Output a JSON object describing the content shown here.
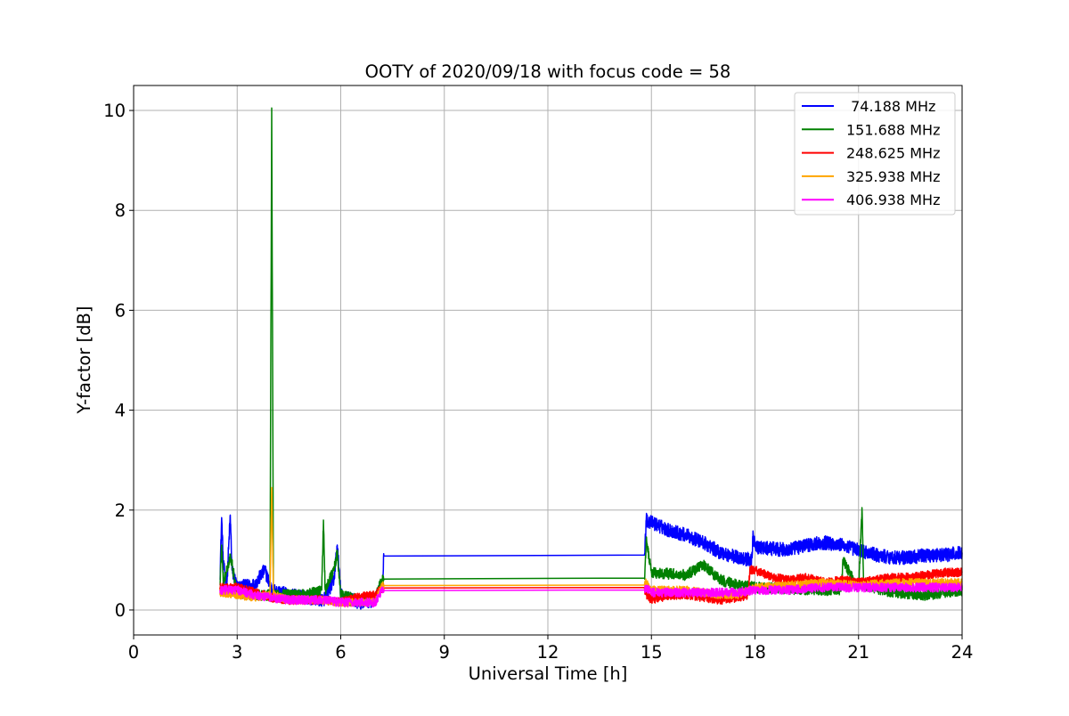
{
  "chart_data": {
    "type": "line",
    "title": "OOTY of 2020/09/18 with focus code = 58",
    "xlabel": "Universal Time [h]",
    "ylabel": "Y-factor [dB]",
    "xlim": [
      0,
      24
    ],
    "ylim": [
      -0.5,
      10.5
    ],
    "xticks": [
      0,
      3,
      6,
      9,
      12,
      15,
      18,
      21,
      24
    ],
    "yticks": [
      0,
      2,
      4,
      6,
      8,
      10
    ],
    "grid": true,
    "legend_position": "top-right",
    "series": [
      {
        "name": " 74.188 MHz",
        "color": "#0000ff",
        "noise": 0.14,
        "points": [
          [
            2.5,
            0.6
          ],
          [
            2.55,
            1.85
          ],
          [
            2.6,
            0.9
          ],
          [
            2.7,
            0.5
          ],
          [
            2.8,
            1.9
          ],
          [
            2.85,
            0.8
          ],
          [
            3.0,
            0.45
          ],
          [
            3.5,
            0.5
          ],
          [
            3.8,
            0.8
          ],
          [
            4.0,
            0.4
          ],
          [
            4.5,
            0.3
          ],
          [
            5.0,
            0.25
          ],
          [
            5.5,
            0.2
          ],
          [
            5.8,
            0.6
          ],
          [
            5.9,
            1.3
          ],
          [
            6.0,
            0.3
          ],
          [
            6.5,
            0.15
          ],
          [
            7.0,
            0.2
          ],
          [
            7.2,
            0.5
          ],
          [
            7.25,
            1.08
          ],
          [
            14.8,
            1.1
          ],
          [
            14.85,
            1.8
          ],
          [
            15.0,
            1.75
          ],
          [
            15.5,
            1.6
          ],
          [
            16.0,
            1.5
          ],
          [
            16.5,
            1.35
          ],
          [
            17.0,
            1.15
          ],
          [
            17.5,
            1.05
          ],
          [
            17.9,
            1.0
          ],
          [
            17.95,
            1.5
          ],
          [
            18.0,
            1.25
          ],
          [
            19.0,
            1.2
          ],
          [
            19.5,
            1.3
          ],
          [
            20.0,
            1.35
          ],
          [
            20.5,
            1.3
          ],
          [
            21.0,
            1.2
          ],
          [
            21.5,
            1.1
          ],
          [
            22.0,
            1.05
          ],
          [
            22.5,
            1.05
          ],
          [
            23.0,
            1.1
          ],
          [
            23.5,
            1.1
          ],
          [
            24.0,
            1.15
          ]
        ]
      },
      {
        "name": "151.688 MHz",
        "color": "#008000",
        "noise": 0.11,
        "points": [
          [
            2.5,
            0.5
          ],
          [
            2.55,
            1.3
          ],
          [
            2.6,
            0.5
          ],
          [
            2.8,
            1.1
          ],
          [
            3.0,
            0.35
          ],
          [
            3.5,
            0.3
          ],
          [
            3.95,
            0.3
          ],
          [
            4.0,
            10.05
          ],
          [
            4.05,
            0.3
          ],
          [
            4.5,
            0.3
          ],
          [
            5.0,
            0.3
          ],
          [
            5.45,
            0.4
          ],
          [
            5.5,
            1.8
          ],
          [
            5.55,
            0.4
          ],
          [
            5.8,
            0.8
          ],
          [
            5.9,
            1.15
          ],
          [
            6.0,
            0.3
          ],
          [
            6.5,
            0.2
          ],
          [
            7.0,
            0.25
          ],
          [
            7.2,
            0.6
          ],
          [
            7.25,
            0.62
          ],
          [
            14.8,
            0.64
          ],
          [
            14.85,
            1.4
          ],
          [
            15.0,
            0.75
          ],
          [
            16.0,
            0.7
          ],
          [
            16.5,
            0.9
          ],
          [
            17.0,
            0.6
          ],
          [
            17.5,
            0.5
          ],
          [
            18.0,
            0.45
          ],
          [
            20.0,
            0.4
          ],
          [
            20.5,
            0.4
          ],
          [
            20.55,
            1.0
          ],
          [
            21.0,
            0.4
          ],
          [
            21.1,
            2.05
          ],
          [
            21.15,
            0.5
          ],
          [
            22.0,
            0.35
          ],
          [
            23.0,
            0.3
          ],
          [
            24.0,
            0.4
          ]
        ]
      },
      {
        "name": "248.625 MHz",
        "color": "#ff0000",
        "noise": 0.09,
        "points": [
          [
            2.5,
            0.45
          ],
          [
            3.0,
            0.45
          ],
          [
            3.5,
            0.35
          ],
          [
            4.0,
            0.25
          ],
          [
            4.5,
            0.2
          ],
          [
            5.0,
            0.2
          ],
          [
            5.5,
            0.2
          ],
          [
            6.0,
            0.15
          ],
          [
            6.5,
            0.25
          ],
          [
            7.0,
            0.3
          ],
          [
            7.2,
            0.45
          ],
          [
            7.25,
            0.44
          ],
          [
            14.8,
            0.45
          ],
          [
            14.85,
            0.3
          ],
          [
            15.0,
            0.2
          ],
          [
            15.5,
            0.3
          ],
          [
            16.0,
            0.3
          ],
          [
            16.5,
            0.25
          ],
          [
            17.0,
            0.2
          ],
          [
            17.5,
            0.25
          ],
          [
            17.8,
            0.3
          ],
          [
            17.85,
            0.8
          ],
          [
            18.0,
            0.8
          ],
          [
            18.5,
            0.65
          ],
          [
            19.0,
            0.6
          ],
          [
            19.5,
            0.65
          ],
          [
            20.0,
            0.55
          ],
          [
            20.5,
            0.6
          ],
          [
            21.0,
            0.55
          ],
          [
            21.5,
            0.6
          ],
          [
            22.0,
            0.65
          ],
          [
            22.5,
            0.65
          ],
          [
            23.0,
            0.7
          ],
          [
            23.5,
            0.75
          ],
          [
            24.0,
            0.75
          ]
        ]
      },
      {
        "name": "325.938 MHz",
        "color": "#ffa500",
        "noise": 0.08,
        "points": [
          [
            2.5,
            0.35
          ],
          [
            3.0,
            0.3
          ],
          [
            3.5,
            0.25
          ],
          [
            3.95,
            0.3
          ],
          [
            4.0,
            2.45
          ],
          [
            4.05,
            0.3
          ],
          [
            4.5,
            0.2
          ],
          [
            5.0,
            0.2
          ],
          [
            5.5,
            0.2
          ],
          [
            6.0,
            0.15
          ],
          [
            6.5,
            0.15
          ],
          [
            7.0,
            0.15
          ],
          [
            7.2,
            0.5
          ],
          [
            7.25,
            0.49
          ],
          [
            14.8,
            0.5
          ],
          [
            14.85,
            0.55
          ],
          [
            15.0,
            0.4
          ],
          [
            16.0,
            0.4
          ],
          [
            17.0,
            0.3
          ],
          [
            17.5,
            0.3
          ],
          [
            18.0,
            0.45
          ],
          [
            19.0,
            0.5
          ],
          [
            20.0,
            0.55
          ],
          [
            21.0,
            0.5
          ],
          [
            22.0,
            0.55
          ],
          [
            23.0,
            0.55
          ],
          [
            24.0,
            0.55
          ]
        ]
      },
      {
        "name": "406.938 MHz",
        "color": "#ff00ff",
        "noise": 0.09,
        "points": [
          [
            2.5,
            0.4
          ],
          [
            3.0,
            0.4
          ],
          [
            3.5,
            0.3
          ],
          [
            4.0,
            0.25
          ],
          [
            4.5,
            0.2
          ],
          [
            5.0,
            0.2
          ],
          [
            5.5,
            0.2
          ],
          [
            6.0,
            0.15
          ],
          [
            6.5,
            0.15
          ],
          [
            7.0,
            0.15
          ],
          [
            7.2,
            0.4
          ],
          [
            7.25,
            0.39
          ],
          [
            14.8,
            0.4
          ],
          [
            14.85,
            0.45
          ],
          [
            15.0,
            0.35
          ],
          [
            16.0,
            0.35
          ],
          [
            17.0,
            0.35
          ],
          [
            17.5,
            0.35
          ],
          [
            18.0,
            0.4
          ],
          [
            19.0,
            0.4
          ],
          [
            20.0,
            0.45
          ],
          [
            21.0,
            0.45
          ],
          [
            22.0,
            0.45
          ],
          [
            23.0,
            0.45
          ],
          [
            24.0,
            0.45
          ]
        ]
      }
    ]
  }
}
